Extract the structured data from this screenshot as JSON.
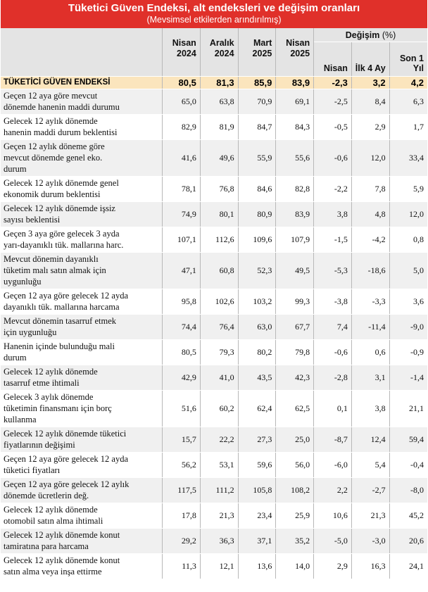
{
  "title": "Tüketici Güven Endeksi, alt endeksleri ve değişim oranları",
  "subtitle": "(Mevsimsel etkilerden arındırılmış)",
  "periods": [
    {
      "top": "Nisan",
      "bottom": "2024"
    },
    {
      "top": "Aralık",
      "bottom": "2024"
    },
    {
      "top": "Mart",
      "bottom": "2025"
    },
    {
      "top": "Nisan",
      "bottom": "2025"
    }
  ],
  "change_header": {
    "label": "Değişim",
    "unit": "(%)"
  },
  "change_columns": [
    "Nisan",
    "İlk 4 Ay",
    "Son 1 Yıl"
  ],
  "total_row": {
    "label": "TÜKETİCİ GÜVEN ENDEKSİ",
    "values": [
      "80,5",
      "81,3",
      "85,9",
      "83,9"
    ],
    "changes": [
      "-2,3",
      "3,2",
      "4,2"
    ]
  },
  "rows": [
    {
      "lines": [
        "Geçen 12 aya göre mevcut",
        "dönemde hanenin maddi durumu"
      ],
      "values": [
        "65,0",
        "63,8",
        "70,9",
        "69,1"
      ],
      "changes": [
        "-2,5",
        "8,4",
        "6,3"
      ]
    },
    {
      "lines": [
        "Gelecek 12 aylık dönemde",
        "hanenin maddi durum beklentisi"
      ],
      "values": [
        "82,9",
        "81,9",
        "84,7",
        "84,3"
      ],
      "changes": [
        "-0,5",
        "2,9",
        "1,7"
      ]
    },
    {
      "lines": [
        "Geçen 12 aylık döneme göre",
        "mevcut dönemde genel eko.",
        "durum"
      ],
      "values": [
        "41,6",
        "49,6",
        "55,9",
        "55,6"
      ],
      "changes": [
        "-0,6",
        "12,0",
        "33,4"
      ]
    },
    {
      "lines": [
        "Gelecek 12 aylık dönemde genel",
        "ekonomik durum beklentisi"
      ],
      "values": [
        "78,1",
        "76,8",
        "84,6",
        "82,8"
      ],
      "changes": [
        "-2,2",
        "7,8",
        "5,9"
      ]
    },
    {
      "lines": [
        "Gelecek 12 aylık dönemde işsiz",
        "sayısı beklentisi"
      ],
      "values": [
        "74,9",
        "80,1",
        "80,9",
        "83,9"
      ],
      "changes": [
        "3,8",
        "4,8",
        "12,0"
      ]
    },
    {
      "lines": [
        "Geçen 3 aya göre gelecek 3 ayda",
        "yarı-dayanıklı tük. mallarına harc."
      ],
      "values": [
        "107,1",
        "112,6",
        "109,6",
        "107,9"
      ],
      "changes": [
        "-1,5",
        "-4,2",
        "0,8"
      ]
    },
    {
      "lines": [
        "Mevcut dönemin dayanıklı",
        "tüketim malı satın almak için",
        "uygunluğu"
      ],
      "values": [
        "47,1",
        "60,8",
        "52,3",
        "49,5"
      ],
      "changes": [
        "-5,3",
        "-18,6",
        "5,0"
      ]
    },
    {
      "lines": [
        "Geçen 12 aya göre gelecek 12 ayda",
        "dayanıklı tük. mallarına harcama"
      ],
      "values": [
        "95,8",
        "102,6",
        "103,2",
        "99,3"
      ],
      "changes": [
        "-3,8",
        "-3,3",
        "3,6"
      ]
    },
    {
      "lines": [
        "Mevcut dönemin tasarruf etmek",
        "için uygunluğu"
      ],
      "values": [
        "74,4",
        "76,4",
        "63,0",
        "67,7"
      ],
      "changes": [
        "7,4",
        "-11,4",
        "-9,0"
      ]
    },
    {
      "lines": [
        "Hanenin içinde bulunduğu mali",
        "durum"
      ],
      "values": [
        "80,5",
        "79,3",
        "80,2",
        "79,8"
      ],
      "changes": [
        "-0,6",
        "0,6",
        "-0,9"
      ]
    },
    {
      "lines": [
        "Gelecek 12 aylık dönemde",
        "tasarruf etme ihtimali"
      ],
      "values": [
        "42,9",
        "41,0",
        "43,5",
        "42,3"
      ],
      "changes": [
        "-2,8",
        "3,1",
        "-1,4"
      ]
    },
    {
      "lines": [
        "Gelecek 3 aylık dönemde",
        "tüketimin finansmanı için borç",
        "kullanma"
      ],
      "values": [
        "51,6",
        "60,2",
        "62,4",
        "62,5"
      ],
      "changes": [
        "0,1",
        "3,8",
        "21,1"
      ]
    },
    {
      "lines": [
        "Gelecek 12 aylık dönemde tüketici",
        "fiyatlarının değişimi"
      ],
      "values": [
        "15,7",
        "22,2",
        "27,3",
        "25,0"
      ],
      "changes": [
        "-8,7",
        "12,4",
        "59,4"
      ]
    },
    {
      "lines": [
        "Geçen 12 aya göre gelecek 12 ayda",
        "tüketici fiyatları"
      ],
      "values": [
        "56,2",
        "53,1",
        "59,6",
        "56,0"
      ],
      "changes": [
        "-6,0",
        "5,4",
        "-0,4"
      ]
    },
    {
      "lines": [
        "Geçen 12 aya göre gelecek 12 aylık",
        "dönemde ücretlerin değ."
      ],
      "values": [
        "117,5",
        "111,2",
        "105,8",
        "108,2"
      ],
      "changes": [
        "2,2",
        "-2,7",
        "-8,0"
      ]
    },
    {
      "lines": [
        "Gelecek 12 aylık dönemde",
        "otomobil satın alma ihtimali"
      ],
      "values": [
        "17,8",
        "21,3",
        "23,4",
        "25,9"
      ],
      "changes": [
        "10,6",
        "21,3",
        "45,2"
      ]
    },
    {
      "lines": [
        "Gelecek 12 aylık dönemde konut",
        "tamiratına para harcama"
      ],
      "values": [
        "29,2",
        "36,3",
        "37,1",
        "35,2"
      ],
      "changes": [
        "-5,0",
        "-3,0",
        "20,6"
      ]
    },
    {
      "lines": [
        "Gelecek 12 aylık dönemde konut",
        "satın alma veya inşa ettirme"
      ],
      "values": [
        "11,3",
        "12,1",
        "13,6",
        "14,0"
      ],
      "changes": [
        "2,9",
        "16,3",
        "24,1"
      ]
    }
  ]
}
